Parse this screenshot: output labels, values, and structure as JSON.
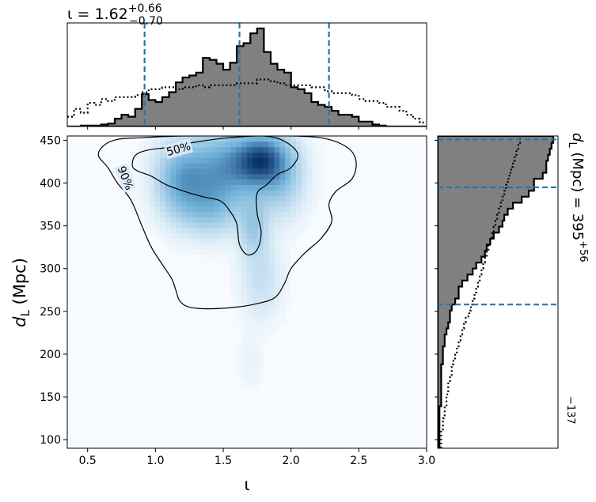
{
  "chart_data": {
    "type": "joint_posterior",
    "top_title": {
      "symbol": "ι",
      "equals": " = ",
      "median": "1.62",
      "upper": "+0.66",
      "lower": "−0.70"
    },
    "right_title": {
      "symbol": "d",
      "subscript": "L",
      "unit": " (Mpc)",
      "equals": " = ",
      "median": "395",
      "upper": "+56",
      "lower": "−137"
    },
    "xlabel": "ι",
    "ylabel": {
      "symbol": "d",
      "subscript": "L",
      "unit": " (Mpc)"
    },
    "xlim": [
      0.35,
      3.0
    ],
    "ylim": [
      90,
      455
    ],
    "xticks": [
      {
        "value": 0.5,
        "label": "0.5"
      },
      {
        "value": 1.0,
        "label": "1.0"
      },
      {
        "value": 1.5,
        "label": "1.5"
      },
      {
        "value": 2.0,
        "label": "2.0"
      },
      {
        "value": 2.5,
        "label": "2.5"
      },
      {
        "value": 3.0,
        "label": "3.0"
      }
    ],
    "yticks": [
      {
        "value": 100,
        "label": "100"
      },
      {
        "value": 150,
        "label": "150"
      },
      {
        "value": 200,
        "label": "200"
      },
      {
        "value": 250,
        "label": "250"
      },
      {
        "value": 300,
        "label": "300"
      },
      {
        "value": 350,
        "label": "350"
      },
      {
        "value": 400,
        "label": "400"
      },
      {
        "value": 450,
        "label": "450"
      }
    ],
    "iota_quantiles": [
      0.92,
      1.62,
      2.28
    ],
    "dl_quantiles": [
      258,
      395,
      451
    ],
    "iota_hist": {
      "bin_edges": [
        0.35,
        0.4,
        0.45,
        0.5,
        0.55,
        0.6,
        0.65,
        0.7,
        0.75,
        0.8,
        0.85,
        0.9,
        0.95,
        1.0,
        1.05,
        1.1,
        1.15,
        1.2,
        1.25,
        1.3,
        1.35,
        1.4,
        1.45,
        1.5,
        1.55,
        1.6,
        1.65,
        1.7,
        1.75,
        1.8,
        1.85,
        1.9,
        1.95,
        2.0,
        2.05,
        2.1,
        2.15,
        2.2,
        2.25,
        2.3,
        2.35,
        2.4,
        2.45,
        2.5,
        2.55,
        2.6,
        2.65,
        2.7,
        2.75,
        2.8,
        2.85,
        2.9,
        2.95,
        3.0
      ],
      "counts": [
        0,
        0,
        1,
        1,
        1,
        2,
        3,
        8,
        12,
        10,
        18,
        33,
        27,
        25,
        30,
        35,
        45,
        50,
        52,
        55,
        70,
        68,
        64,
        58,
        65,
        82,
        85,
        95,
        100,
        76,
        64,
        58,
        55,
        40,
        38,
        34,
        25,
        22,
        20,
        16,
        12,
        12,
        10,
        5,
        5,
        2,
        1,
        0,
        0,
        0,
        0,
        0,
        0
      ],
      "prior": [
        10,
        18,
        14,
        24,
        22,
        28,
        26,
        30,
        30,
        30,
        32,
        35,
        38,
        38,
        40,
        40,
        38,
        40,
        40,
        42,
        40,
        42,
        42,
        42,
        42,
        44,
        44,
        44,
        48,
        48,
        46,
        44,
        42,
        42,
        42,
        42,
        40,
        40,
        36,
        34,
        34,
        34,
        32,
        28,
        26,
        26,
        24,
        20,
        20,
        16,
        12,
        8,
        4
      ]
    },
    "dl_hist": {
      "bin_edges": [
        90,
        97,
        104,
        111,
        118,
        125,
        132,
        139,
        146,
        153,
        160,
        167,
        174,
        181,
        188,
        195,
        202,
        209,
        216,
        223,
        230,
        237,
        244,
        251,
        258,
        265,
        272,
        279,
        286,
        293,
        300,
        307,
        314,
        321,
        328,
        335,
        342,
        349,
        356,
        363,
        370,
        377,
        384,
        391,
        398,
        405,
        412,
        419,
        426,
        433,
        440,
        447,
        455
      ],
      "counts": [
        1,
        1,
        1,
        1,
        1,
        1,
        1,
        2,
        2,
        2,
        2,
        2,
        2,
        2,
        3,
        3,
        3,
        4,
        4,
        5,
        6,
        7,
        7,
        8,
        10,
        12,
        12,
        14,
        17,
        20,
        22,
        25,
        27,
        28,
        30,
        32,
        35,
        37,
        38,
        40,
        43,
        48,
        52,
        55,
        55,
        60,
        62,
        62,
        63,
        64,
        65,
        66
      ],
      "prior": [
        2,
        2,
        2,
        3,
        3,
        4,
        4,
        5,
        5,
        6,
        6,
        7,
        8,
        8,
        9,
        10,
        11,
        12,
        13,
        14,
        15,
        16,
        18,
        19,
        20,
        21,
        22,
        23,
        24,
        25,
        26,
        27,
        28,
        29,
        30,
        31,
        32,
        33,
        34,
        35,
        36,
        37,
        38,
        39,
        40,
        41,
        42,
        43,
        44,
        45,
        46,
        47
      ]
    },
    "density_peaks": [
      {
        "x": 1.78,
        "y": 428,
        "sx": 0.13,
        "sy": 20,
        "w": 1.0
      },
      {
        "x": 1.5,
        "y": 418,
        "sx": 0.22,
        "sy": 28,
        "w": 0.8
      },
      {
        "x": 1.18,
        "y": 402,
        "sx": 0.12,
        "sy": 28,
        "w": 0.55
      },
      {
        "x": 1.4,
        "y": 372,
        "sx": 0.15,
        "sy": 22,
        "w": 0.48
      },
      {
        "x": 1.72,
        "y": 350,
        "sx": 0.07,
        "sy": 22,
        "w": 0.4
      },
      {
        "x": 1.78,
        "y": 290,
        "sx": 0.1,
        "sy": 32,
        "w": 0.22
      },
      {
        "x": 1.92,
        "y": 405,
        "sx": 0.12,
        "sy": 30,
        "w": 0.4
      },
      {
        "x": 1.7,
        "y": 190,
        "sx": 0.06,
        "sy": 20,
        "w": 0.06
      }
    ],
    "contour_50": [
      [
        0.83,
        420
      ],
      [
        0.85,
        432
      ],
      [
        0.93,
        438
      ],
      [
        1.1,
        442
      ],
      [
        1.3,
        448
      ],
      [
        1.55,
        453
      ],
      [
        1.8,
        455
      ],
      [
        1.95,
        449
      ],
      [
        2.05,
        434
      ],
      [
        2.0,
        418
      ],
      [
        1.9,
        410
      ],
      [
        1.82,
        398
      ],
      [
        1.75,
        388
      ],
      [
        1.75,
        365
      ],
      [
        1.78,
        342
      ],
      [
        1.75,
        322
      ],
      [
        1.68,
        316
      ],
      [
        1.62,
        328
      ],
      [
        1.6,
        352
      ],
      [
        1.55,
        367
      ],
      [
        1.48,
        379
      ],
      [
        1.35,
        384
      ],
      [
        1.22,
        390
      ],
      [
        1.08,
        398
      ],
      [
        0.97,
        408
      ],
      [
        0.87,
        414
      ]
    ],
    "contour_90": [
      [
        0.58,
        432
      ],
      [
        0.62,
        444
      ],
      [
        0.72,
        451
      ],
      [
        0.9,
        453
      ],
      [
        1.2,
        455
      ],
      [
        1.6,
        455
      ],
      [
        2.0,
        455
      ],
      [
        2.25,
        452
      ],
      [
        2.42,
        441
      ],
      [
        2.48,
        425
      ],
      [
        2.45,
        405
      ],
      [
        2.33,
        390
      ],
      [
        2.28,
        375
      ],
      [
        2.3,
        355
      ],
      [
        2.22,
        335
      ],
      [
        2.1,
        318
      ],
      [
        2.0,
        300
      ],
      [
        1.95,
        282
      ],
      [
        1.88,
        266
      ],
      [
        1.75,
        259
      ],
      [
        1.6,
        255
      ],
      [
        1.4,
        253
      ],
      [
        1.25,
        255
      ],
      [
        1.18,
        262
      ],
      [
        1.15,
        275
      ],
      [
        1.12,
        288
      ],
      [
        1.05,
        305
      ],
      [
        0.97,
        325
      ],
      [
        0.9,
        350
      ],
      [
        0.82,
        380
      ],
      [
        0.72,
        400
      ],
      [
        0.65,
        418
      ]
    ],
    "contour_labels": [
      {
        "text": "50%",
        "x": 1.17,
        "y": 440,
        "rotate": -15
      },
      {
        "text": "90%",
        "x": 0.78,
        "y": 406,
        "rotate": 68
      }
    ],
    "colors": {
      "density_low": "#f7fbff",
      "density_mid": "#6baed6",
      "density_high": "#08306b",
      "hist_fill": "#808080",
      "quantile_line": "#1f77b4"
    }
  }
}
